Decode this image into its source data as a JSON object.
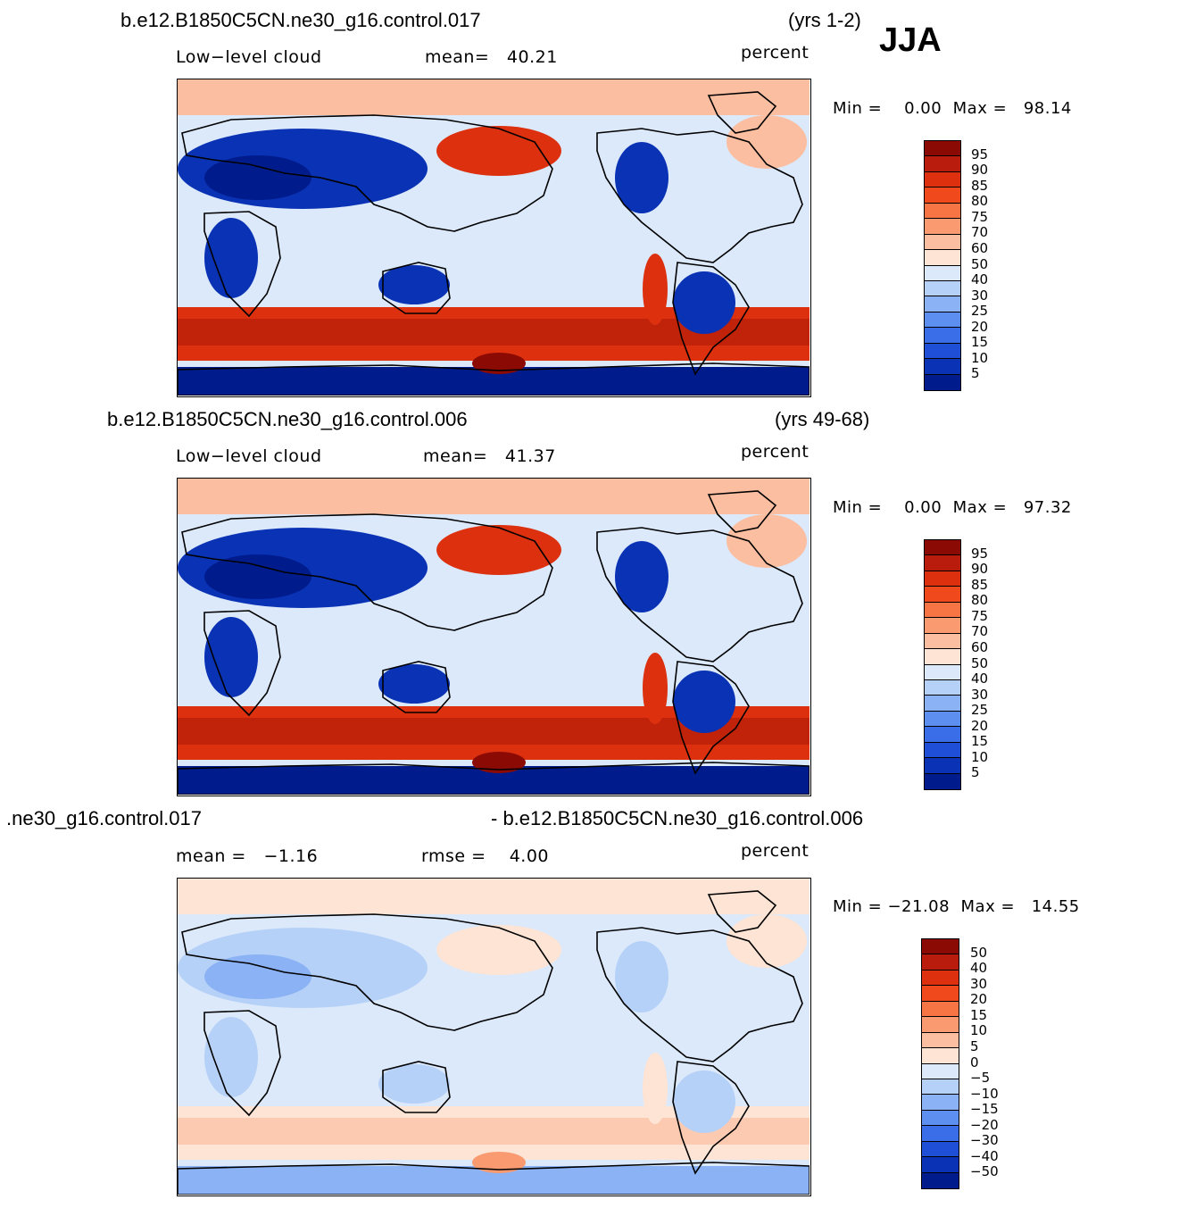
{
  "season": "JJA",
  "panels": [
    {
      "case": "b.e12.B1850C5CN.ne30_g16.control.017",
      "years": "(yrs 1-2)",
      "variable": "Low−level cloud",
      "stat1": "mean=   40.21",
      "units": "percent",
      "minmax": "Min =    0.00  Max =   98.14",
      "colorbar": {
        "labels": [
          "95",
          "90",
          "85",
          "80",
          "75",
          "70",
          "60",
          "50",
          "40",
          "30",
          "25",
          "20",
          "15",
          "10",
          "5"
        ],
        "colors": [
          "#8c0a04",
          "#b91b0c",
          "#dc300f",
          "#f04a1c",
          "#f77444",
          "#f99a70",
          "#fbbea0",
          "#fde4d4",
          "#dbe9fb",
          "#b6d1f7",
          "#8ab2f4",
          "#5d8ff0",
          "#3a6ee8",
          "#1e4fd6",
          "#0a32b4",
          "#001c8c"
        ]
      },
      "map_colors": {
        "high": "#dc300f",
        "mid": "#dbe9fb",
        "low": "#0a32b4",
        "deep": "#001c8c",
        "peak": "#8c0a04",
        "pale": "#fbbea0"
      }
    },
    {
      "case": "b.e12.B1850C5CN.ne30_g16.control.006",
      "years": "(yrs 49-68)",
      "variable": "Low−level cloud",
      "stat1": "mean=   41.37",
      "units": "percent",
      "minmax": "Min =    0.00  Max =   97.32",
      "colorbar": {
        "labels": [
          "95",
          "90",
          "85",
          "80",
          "75",
          "70",
          "60",
          "50",
          "40",
          "30",
          "25",
          "20",
          "15",
          "10",
          "5"
        ],
        "colors": [
          "#8c0a04",
          "#b91b0c",
          "#dc300f",
          "#f04a1c",
          "#f77444",
          "#f99a70",
          "#fbbea0",
          "#fde4d4",
          "#dbe9fb",
          "#b6d1f7",
          "#8ab2f4",
          "#5d8ff0",
          "#3a6ee8",
          "#1e4fd6",
          "#0a32b4",
          "#001c8c"
        ]
      },
      "map_colors": {
        "high": "#dc300f",
        "mid": "#dbe9fb",
        "low": "#0a32b4",
        "deep": "#001c8c",
        "peak": "#8c0a04",
        "pale": "#fbbea0"
      }
    },
    {
      "case_left": ".ne30_g16.control.017",
      "case_right": "- b.e12.B1850C5CN.ne30_g16.control.006",
      "stat1": "mean =   −1.16",
      "stat2": "rmse =    4.00",
      "units": "percent",
      "minmax": "Min = −21.08  Max =   14.55",
      "colorbar": {
        "labels": [
          "50",
          "40",
          "30",
          "20",
          "15",
          "10",
          "5",
          "0",
          "−5",
          "−10",
          "−15",
          "−20",
          "−30",
          "−40",
          "−50"
        ],
        "colors": [
          "#8c0a04",
          "#b91b0c",
          "#dc300f",
          "#f04a1c",
          "#f77444",
          "#f99a70",
          "#fbbea0",
          "#fde4d4",
          "#dbe9fb",
          "#b6d1f7",
          "#8ab2f4",
          "#5d8ff0",
          "#3a6ee8",
          "#1e4fd6",
          "#0a32b4",
          "#001c8c"
        ]
      },
      "map_colors": {
        "high": "#fde4d4",
        "mid": "#dbe9fb",
        "low": "#b6d1f7",
        "deep": "#8ab2f4",
        "peak": "#f99a70",
        "pale": "#fde4d4"
      }
    }
  ]
}
